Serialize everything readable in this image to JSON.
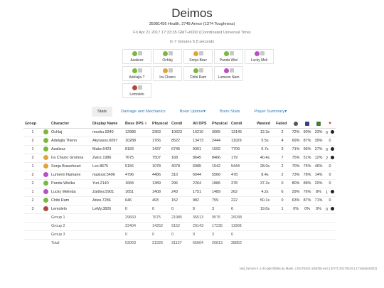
{
  "header": {
    "title": "Deimos",
    "health_line": "35981456 Health, 2748 Armor (1374 Toughness)",
    "date_line": "Fri Apr 21 2017 17:33:35 GMT+0000 (Coordinated Universal Time)",
    "duration_line": "In 7 minutes 5.5 seconds"
  },
  "squad": [
    {
      "name": "Azalissz",
      "prof_color": "#7cb83f"
    },
    {
      "name": "Ochlaj",
      "prof_color": "#7cb83f"
    },
    {
      "name": "Sonja Brav",
      "prof_color": "#e0a437"
    },
    {
      "name": "Panda Wiel",
      "prof_color": "#7cb83f"
    },
    {
      "name": "Lucky Meli",
      "prof_color": "#b84fc4"
    },
    {
      "name": "Adelajla T",
      "prof_color": "#7cb83f"
    },
    {
      "name": "Ira Charro",
      "prof_color": "#e0a437"
    },
    {
      "name": "Chibi Ram",
      "prof_color": "#7cb83f"
    },
    {
      "name": "Lumenn Nam",
      "prof_color": "#b84fc4"
    },
    {
      "name": "Lemolelo",
      "prof_color": "#b0463e"
    }
  ],
  "tabs": [
    {
      "label": "Stats",
      "active": true
    },
    {
      "label": "Damage and Mechanics",
      "active": false
    },
    {
      "label": "Boon Uptime▾",
      "active": false
    },
    {
      "label": "Boon Stats",
      "active": false
    },
    {
      "label": "Player Summary▾",
      "active": false
    }
  ],
  "table": {
    "headers": {
      "group": "Group",
      "character": "Character",
      "display": "Display Name",
      "boss_dps": "Boss DPS",
      "physical": "Physical",
      "condi": "Condi",
      "all_dps": "All DPS",
      "physical2": "Physical",
      "condi2": "Condi",
      "wasted": "Wasted",
      "failed": "Failed"
    },
    "rows": [
      {
        "group": "1",
        "character": "Ochlaj",
        "display": "mooku.9340",
        "boss_dps": "12986",
        "physical": "2363",
        "condi": "10623",
        "all_dps": "16210",
        "phys2": "3065",
        "condi2": "13145",
        "wasted": "12.3s",
        "failed": "2",
        "p1": "72%",
        "p2": "90%",
        "p3": "23%",
        "p4": "0",
        "prof_color": "#7cb83f",
        "dot": true
      },
      {
        "group": "2",
        "character": "Adelajla Thenn",
        "display": "Akyrasss.6097",
        "boss_dps": "10288",
        "physical": "1766",
        "condi": "8522",
        "all_dps": "13473",
        "phys2": "2444",
        "condi2": "11029",
        "wasted": "5.5s",
        "failed": "4",
        "p1": "69%",
        "p2": "87%",
        "p3": "39%",
        "p4": "0",
        "prof_color": "#7cb83f",
        "dot": false
      },
      {
        "group": "1",
        "character": "Azalissz",
        "display": "Maks.6423",
        "boss_dps": "8183",
        "physical": "1437",
        "condi": "6746",
        "all_dps": "9301",
        "phys2": "1592",
        "condi2": "7709",
        "wasted": "5.7s",
        "failed": "3",
        "p1": "71%",
        "p2": "96%",
        "p3": "27%",
        "p4": "0",
        "prof_color": "#7cb83f",
        "dot": true
      },
      {
        "group": "2",
        "character": "Ira Charro Gromna",
        "display": "Zwirz.1986",
        "boss_dps": "7675",
        "physical": "7507",
        "condi": "168",
        "all_dps": "8645",
        "phys2": "8466",
        "condi2": "179",
        "wasted": "40.4s",
        "failed": "7",
        "p1": "75%",
        "p2": "51%",
        "p3": "12%",
        "p4": "2",
        "prof_color": "#e0a437",
        "dot": true
      },
      {
        "group": "1",
        "character": "Sonja Braveheart",
        "display": "Lex.8675",
        "boss_dps": "5156",
        "physical": "1078",
        "condi": "4078",
        "all_dps": "6985",
        "phys2": "1542",
        "condi2": "5444",
        "wasted": "28.0s",
        "failed": "2",
        "p1": "70%",
        "p2": "75%",
        "p3": "46%",
        "p4": "0",
        "prof_color": "#e0a437",
        "dot": false
      },
      {
        "group": "2",
        "character": "Lumenn Namarie",
        "display": "maxisst.5496",
        "boss_dps": "4796",
        "physical": "4486",
        "condi": "310",
        "all_dps": "6044",
        "phys2": "5566",
        "condi2": "478",
        "wasted": "8.4s",
        "failed": "2",
        "p1": "73%",
        "p2": "78%",
        "p3": "14%",
        "p4": "0",
        "prof_color": "#b84fc4",
        "dot": false
      },
      {
        "group": "2",
        "character": "Panda Wielka",
        "display": "Yuri.2140",
        "boss_dps": "1684",
        "physical": "1389",
        "condi": "296",
        "all_dps": "2264",
        "phys2": "1886",
        "condi2": "378",
        "wasted": "37.2s",
        "failed": "0",
        "p1": "80%",
        "p2": "88%",
        "p3": "20%",
        "p4": "0",
        "prof_color": "#7cb83f",
        "dot": false
      },
      {
        "group": "1",
        "character": "Lucky Melinda",
        "display": "Zaithra.5901",
        "boss_dps": "1651",
        "physical": "1408",
        "condi": "243",
        "all_dps": "1751",
        "phys2": "1489",
        "condi2": "262",
        "wasted": "4.2s",
        "failed": "6",
        "p1": "29%",
        "p2": "76%",
        "p3": "8%",
        "p4": "1",
        "prof_color": "#b84fc4",
        "dot": true
      },
      {
        "group": "2",
        "character": "Chibi Ram",
        "display": "Aries.7286",
        "boss_dps": "646",
        "physical": "493",
        "condi": "152",
        "all_dps": "982",
        "phys2": "759",
        "condi2": "222",
        "wasted": "50.1s",
        "failed": "0",
        "p1": "63%",
        "p2": "87%",
        "p3": "71%",
        "p4": "0",
        "prof_color": "#7cb83f",
        "dot": false
      },
      {
        "group": "3",
        "character": "Lemolelo",
        "display": "LeMy.3826",
        "boss_dps": "0",
        "physical": "0",
        "condi": "0",
        "all_dps": "9",
        "phys2": "3",
        "condi2": "6",
        "wasted": "19.0s",
        "failed": "1",
        "p1": "0%",
        "p2": "0%",
        "p3": "0%",
        "p4": "0",
        "prof_color": "#b0463e",
        "dot": true
      }
    ],
    "totals": [
      {
        "label": "Group 1",
        "boss_dps": "29660",
        "physical": "7675",
        "condi": "21985",
        "all_dps": "36513",
        "phys2": "9575",
        "condi2": "26938"
      },
      {
        "label": "Group 2",
        "boss_dps": "23404",
        "physical": "14252",
        "condi": "9152",
        "all_dps": "29143",
        "phys2": "17235",
        "condi2": "11908"
      },
      {
        "label": "Group 3",
        "boss_dps": "0",
        "physical": "0",
        "condi": "0",
        "all_dps": "9",
        "phys2": "3",
        "condi2": "6"
      },
      {
        "label": "Total",
        "boss_dps": "53063",
        "physical": "21926",
        "condi": "31137",
        "all_dps": "65664",
        "phys2": "26813",
        "condi2": "38852"
      }
    ]
  },
  "footer": "raid_heroes-1.1-32-g5c0d55a by Mask. | 20170421-194038.evtc | EVTC20170419 | 17154(5e0302)"
}
